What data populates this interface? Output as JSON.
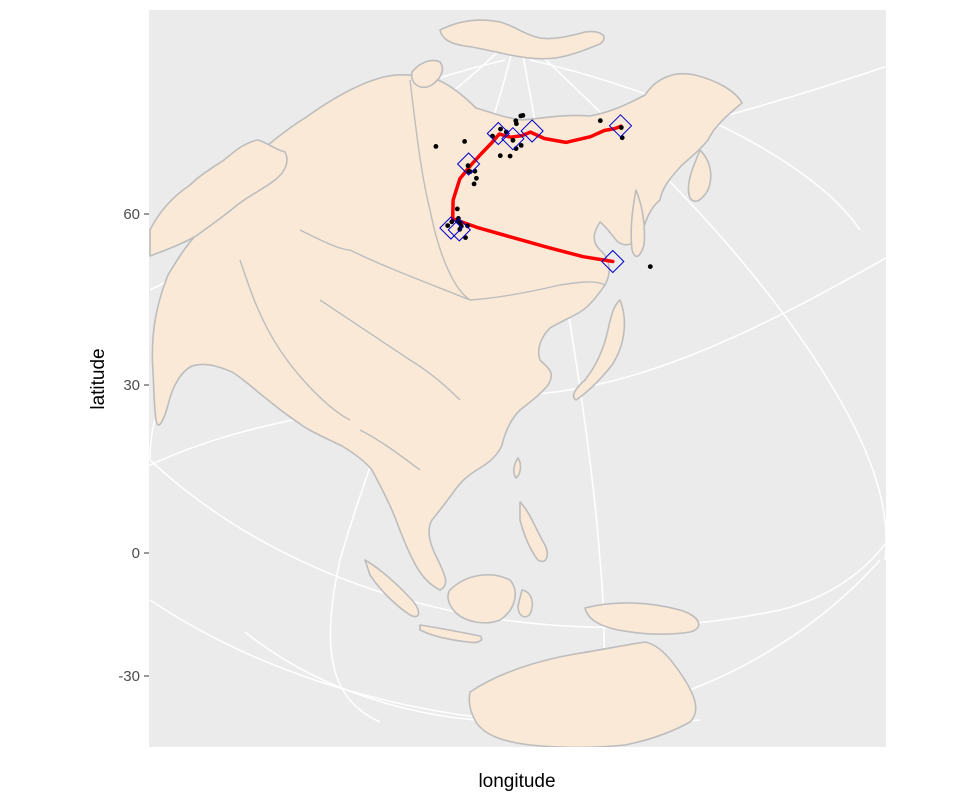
{
  "axes": {
    "xlabel": "longitude",
    "ylabel": "latitude",
    "y_ticks": [
      "60",
      "30",
      "0",
      "-30"
    ]
  },
  "colors": {
    "panel": "#ebebeb",
    "land": "#fae9d7",
    "country_border": "#bdbdbd",
    "graticule": "#ffffff",
    "route": "#ff0000",
    "diamond": "#0000cc",
    "point": "#000000"
  },
  "map": {
    "projection": "orthographic",
    "orientation_center_lon": 105,
    "orientation_center_lat": 30
  },
  "route": {
    "lonlat": [
      [
        127.5,
        50.3
      ],
      [
        121,
        51.8
      ],
      [
        113,
        53.8
      ],
      [
        104,
        55.6
      ],
      [
        95,
        56.9
      ],
      [
        88.0,
        57.8
      ],
      [
        86.5,
        60.8
      ],
      [
        86.3,
        64.5
      ],
      [
        88.5,
        67.2
      ],
      [
        91.0,
        69.4
      ],
      [
        94.5,
        71.8
      ],
      [
        97.0,
        73.5
      ],
      [
        103.0,
        73.0
      ],
      [
        108.5,
        73.3
      ],
      [
        113.0,
        73.9
      ],
      [
        119.0,
        72.4
      ],
      [
        128.0,
        71.0
      ],
      [
        140.0,
        70.8
      ],
      [
        148.0,
        70.9
      ],
      [
        153.0,
        70.4
      ],
      [
        156.5,
        70.2
      ]
    ]
  },
  "stations": {
    "lonlat": [
      [
        127.5,
        50.3
      ],
      [
        88.2,
        56.3
      ],
      [
        90.5,
        56.2
      ],
      [
        87.5,
        67.3
      ],
      [
        96.5,
        73.6
      ],
      [
        104.0,
        72.7
      ],
      [
        114.0,
        74.1
      ],
      [
        156.5,
        70.3
      ]
    ]
  },
  "points": {
    "lonlat": [
      [
        71.5,
        69.0
      ],
      [
        82.0,
        71.2
      ],
      [
        87.5,
        67.0
      ],
      [
        88.5,
        66.0
      ],
      [
        89.0,
        66.0
      ],
      [
        90.6,
        66.2
      ],
      [
        91.8,
        65.0
      ],
      [
        91.5,
        64.0
      ],
      [
        88.5,
        59.5
      ],
      [
        88.0,
        57.3
      ],
      [
        87.2,
        56.6
      ],
      [
        89.5,
        58.0
      ],
      [
        89.6,
        57.5
      ],
      [
        90.2,
        57.3
      ],
      [
        90.8,
        56.8
      ],
      [
        90.6,
        56.3
      ],
      [
        92.4,
        57.0
      ],
      [
        92.5,
        55.1
      ],
      [
        93.9,
        73.0
      ],
      [
        97.2,
        74.5
      ],
      [
        99.0,
        69.4
      ],
      [
        103.0,
        69.4
      ],
      [
        100.5,
        74.0
      ],
      [
        104.0,
        72.4
      ],
      [
        108.8,
        77.3
      ],
      [
        105.5,
        76.3
      ],
      [
        105.8,
        75.7
      ],
      [
        110.2,
        77.4
      ],
      [
        105.5,
        70.8
      ],
      [
        107.8,
        71.4
      ],
      [
        135.5,
        48.2
      ],
      [
        150.8,
        72.7
      ],
      [
        152.0,
        68.5
      ],
      [
        156.0,
        70.0
      ]
    ]
  }
}
